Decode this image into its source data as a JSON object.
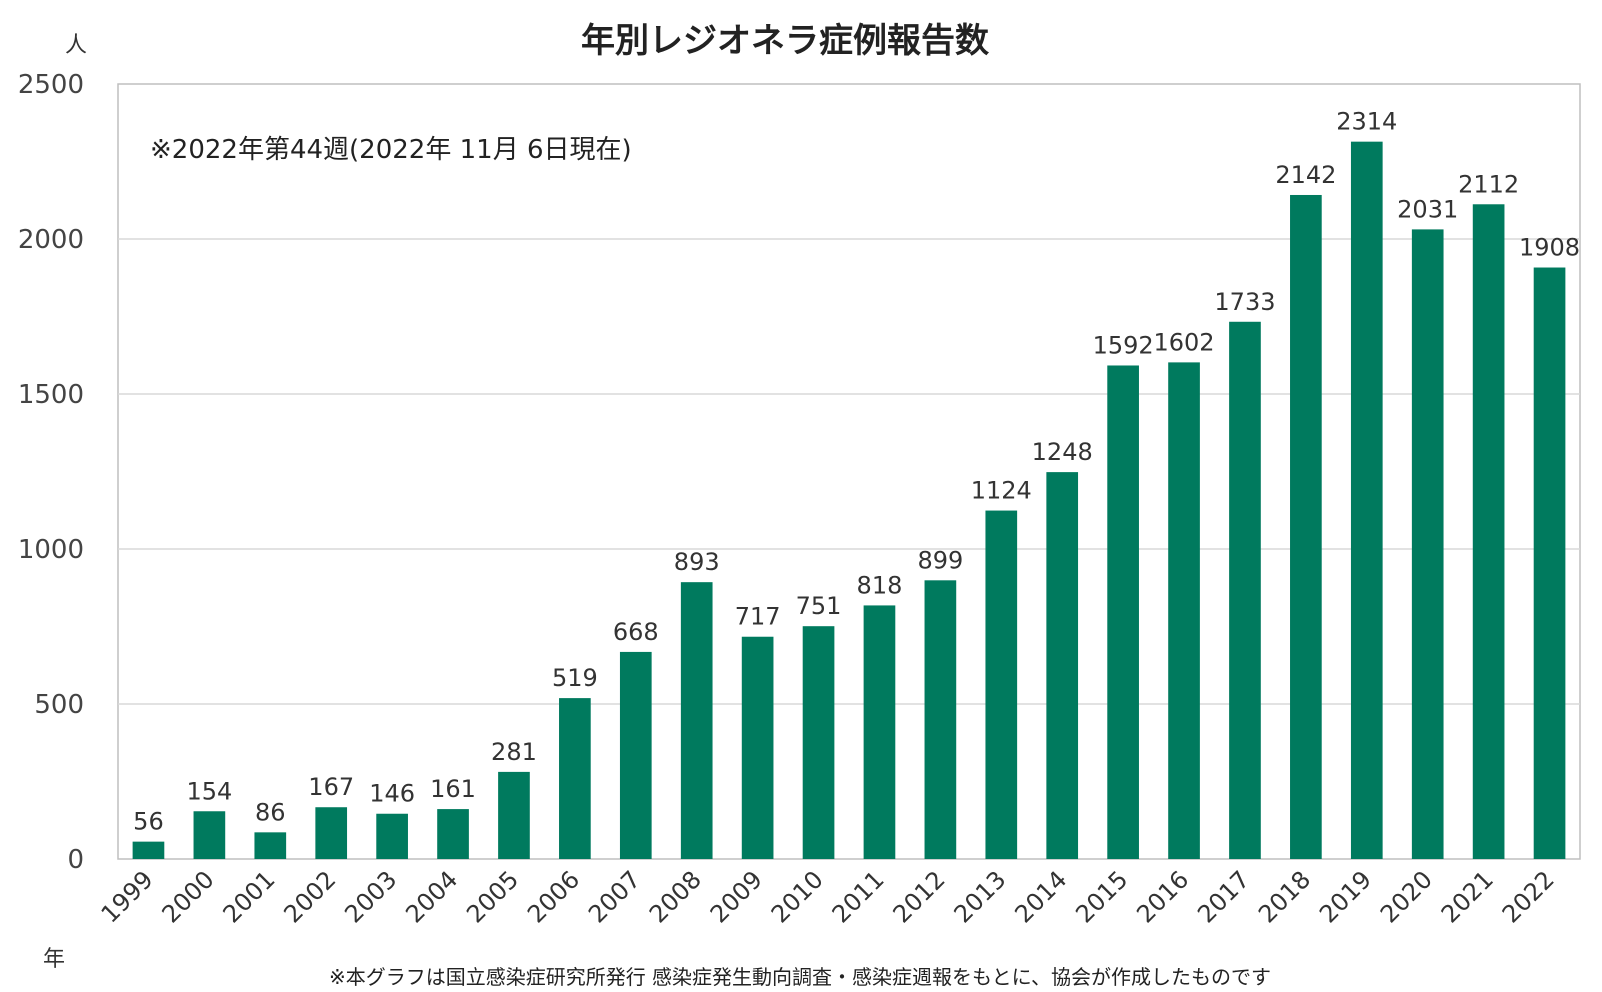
{
  "chart_data": {
    "type": "bar",
    "title": "年別レジオネラ症例報告数",
    "ylabel": "人",
    "xlabel": "年",
    "annotation": "※2022年第44週(2022年 11月 6日現在)",
    "footnote": "※本グラフは国立感染症研究所発行 感染症発生動向調査・感染症週報をもとに、協会が作成したものです",
    "ylim": [
      0,
      2500
    ],
    "yticks": [
      0,
      500,
      1000,
      1500,
      2000,
      2500
    ],
    "grid": true,
    "bar_color": "#007a5e",
    "categories": [
      "1999",
      "2000",
      "2001",
      "2002",
      "2003",
      "2004",
      "2005",
      "2006",
      "2007",
      "2008",
      "2009",
      "2010",
      "2011",
      "2012",
      "2013",
      "2014",
      "2015",
      "2016",
      "2017",
      "2018",
      "2019",
      "2020",
      "2021",
      "2022"
    ],
    "values": [
      56,
      154,
      86,
      167,
      146,
      161,
      281,
      519,
      668,
      893,
      717,
      751,
      818,
      899,
      1124,
      1248,
      1592,
      1602,
      1733,
      2142,
      2314,
      2031,
      2112,
      1908
    ]
  }
}
